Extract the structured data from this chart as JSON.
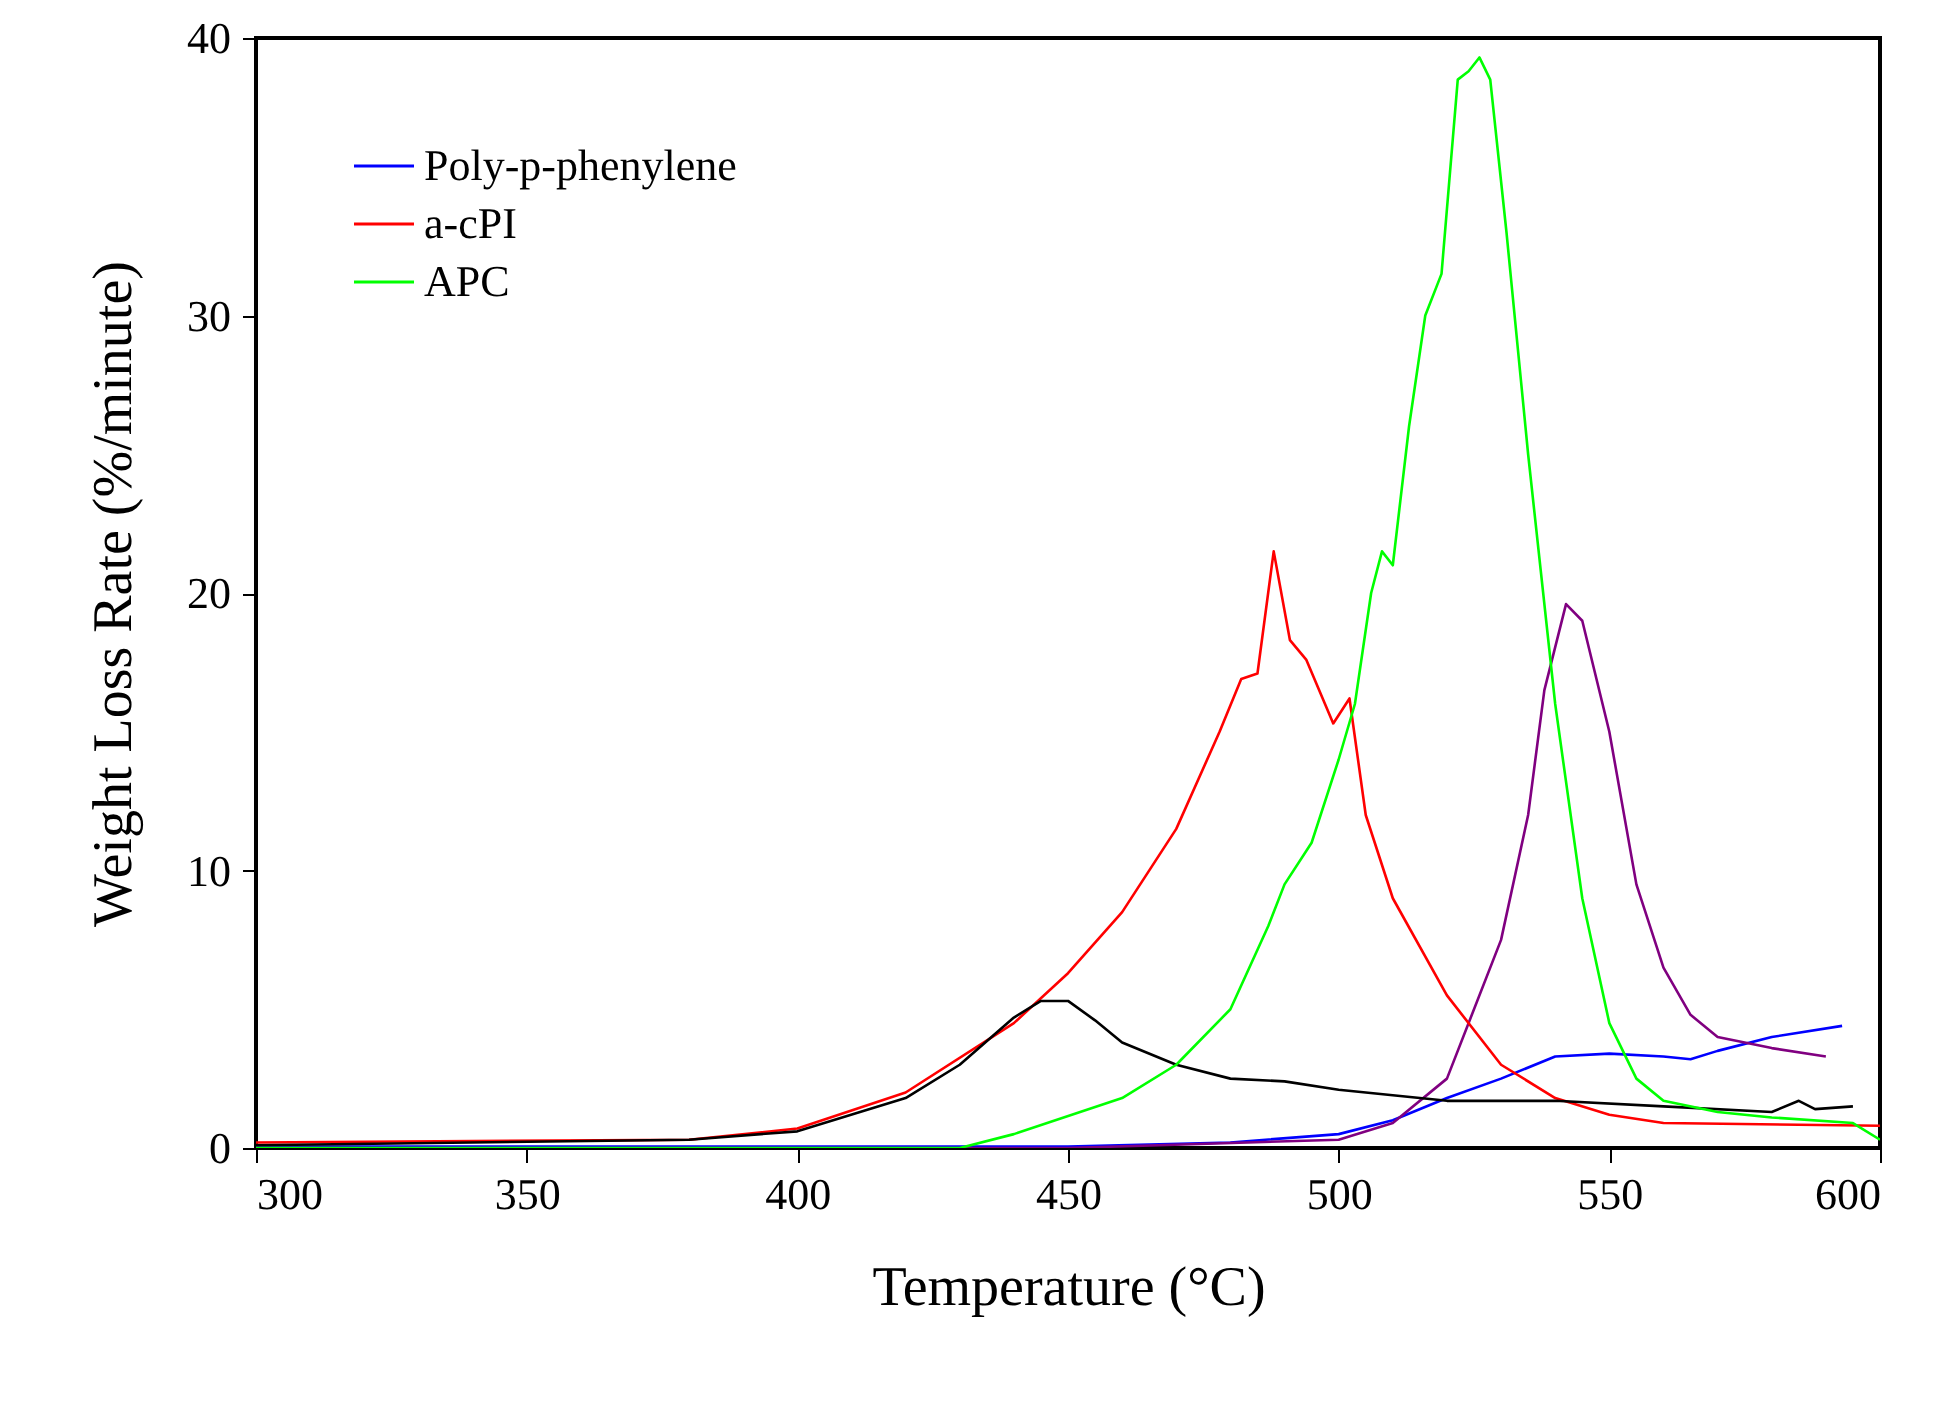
{
  "chart_data": {
    "type": "line",
    "xlabel": "Temperature (°C)",
    "ylabel": "Weight Loss Rate (%/minute)",
    "xlim": [
      300,
      600
    ],
    "xticks": [
      300,
      350,
      400,
      450,
      500,
      550,
      600
    ],
    "ylim": [
      0,
      40
    ],
    "yticks": [
      0,
      10,
      20,
      30,
      40
    ],
    "grid": false,
    "legend": "top left",
    "line_style": "solid",
    "marker": "none",
    "series": [
      {
        "name": "Poly-p-phenylene",
        "color": "#0000ff",
        "x": [
          300,
          350,
          400,
          450,
          480,
          500,
          510,
          520,
          530,
          540,
          550,
          560,
          565,
          570,
          580,
          593
        ],
        "values": [
          0.05,
          0.05,
          0.05,
          0.05,
          0.2,
          0.5,
          1,
          1.8,
          2.5,
          3.3,
          3.4,
          3.3,
          3.2,
          3.5,
          4,
          4.4
        ]
      },
      {
        "color": "#800080",
        "x": [
          300,
          450,
          500,
          510,
          520,
          530,
          535,
          538,
          542,
          545,
          550,
          555,
          560,
          565,
          570,
          580,
          590
        ],
        "values": [
          0,
          0,
          0.3,
          0.9,
          2.5,
          7.5,
          12,
          16.5,
          19.6,
          19,
          15,
          9.5,
          6.5,
          4.8,
          4,
          3.6,
          3.3
        ]
      },
      {
        "name": "a-cPI",
        "color": "#ff0000",
        "x": [
          300,
          380,
          400,
          420,
          440,
          450,
          460,
          470,
          478,
          482,
          485,
          488,
          491,
          494,
          499,
          502,
          505,
          510,
          520,
          530,
          540,
          550,
          560,
          600
        ],
        "values": [
          0.2,
          0.3,
          0.7,
          2,
          4.5,
          6.3,
          8.5,
          11.5,
          15,
          16.9,
          17.1,
          21.5,
          18.3,
          17.6,
          15.3,
          16.2,
          12,
          9,
          5.5,
          3,
          1.8,
          1.2,
          0.9,
          0.8
        ]
      },
      {
        "color": "#000000",
        "x": [
          300,
          380,
          400,
          420,
          430,
          440,
          445,
          450,
          455,
          460,
          470,
          480,
          490,
          500,
          510,
          520,
          540,
          560,
          580,
          585,
          588,
          595
        ],
        "values": [
          0.1,
          0.3,
          0.6,
          1.8,
          3,
          4.7,
          5.3,
          5.3,
          4.6,
          3.8,
          3,
          2.5,
          2.4,
          2.1,
          1.9,
          1.7,
          1.7,
          1.5,
          1.3,
          1.7,
          1.4,
          1.5
        ]
      },
      {
        "name": "APC",
        "color": "#00ff00",
        "x": [
          300,
          430,
          440,
          460,
          470,
          480,
          487,
          490,
          495,
          500,
          503,
          506,
          508,
          510,
          513,
          516,
          519,
          522,
          524,
          526,
          528,
          531,
          535,
          540,
          545,
          550,
          555,
          560,
          570,
          580,
          595,
          600
        ],
        "values": [
          0,
          0,
          0.5,
          1.8,
          3,
          5,
          8,
          9.5,
          11,
          14,
          16,
          20,
          21.5,
          21,
          26,
          30,
          31.5,
          38.5,
          38.8,
          39.3,
          38.5,
          33,
          25,
          16,
          9,
          4.5,
          2.5,
          1.7,
          1.3,
          1.1,
          0.9,
          0.3
        ]
      }
    ]
  }
}
